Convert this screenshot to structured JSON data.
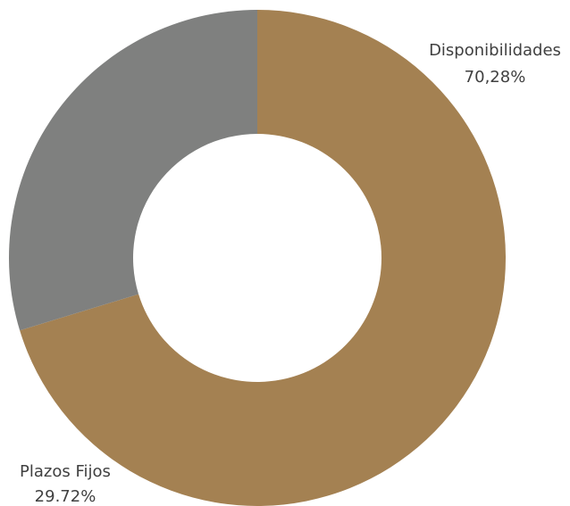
{
  "chart_data": {
    "type": "pie",
    "variant": "donut",
    "slices": [
      {
        "name": "Disponibilidades",
        "value": 70.28,
        "value_label": "70,28%",
        "color": "#a48152"
      },
      {
        "name": "Plazos Fijos",
        "value": 29.72,
        "value_label": "29.72%",
        "color": "#7f807f"
      }
    ],
    "start_angle_deg": 0,
    "direction": "clockwise",
    "legend": "none",
    "data_labels": "outside"
  }
}
